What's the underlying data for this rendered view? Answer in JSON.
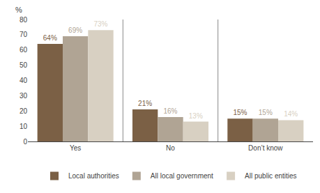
{
  "chart_data": {
    "type": "bar",
    "categories": [
      "Yes",
      "No",
      "Don’t know"
    ],
    "series": [
      {
        "name": "Local authorities",
        "values": [
          64,
          21,
          15
        ],
        "value_labels": [
          "64%",
          "21%",
          "15%"
        ],
        "color": "#7B6045"
      },
      {
        "name": "All local government",
        "values": [
          69,
          16,
          15
        ],
        "value_labels": [
          "69%",
          "16%",
          "15%"
        ],
        "color": "#B0A494"
      },
      {
        "name": "All public entities",
        "values": [
          73,
          13,
          14
        ],
        "value_labels": [
          "73%",
          "13%",
          "14%"
        ],
        "color": "#D8D0C2"
      }
    ],
    "ylabel": "%",
    "ylim": [
      0,
      80
    ],
    "yticks": [
      0,
      10,
      20,
      30,
      40,
      50,
      60,
      70,
      80
    ],
    "grid": false,
    "legend": "bottom",
    "data_labels": true
  }
}
